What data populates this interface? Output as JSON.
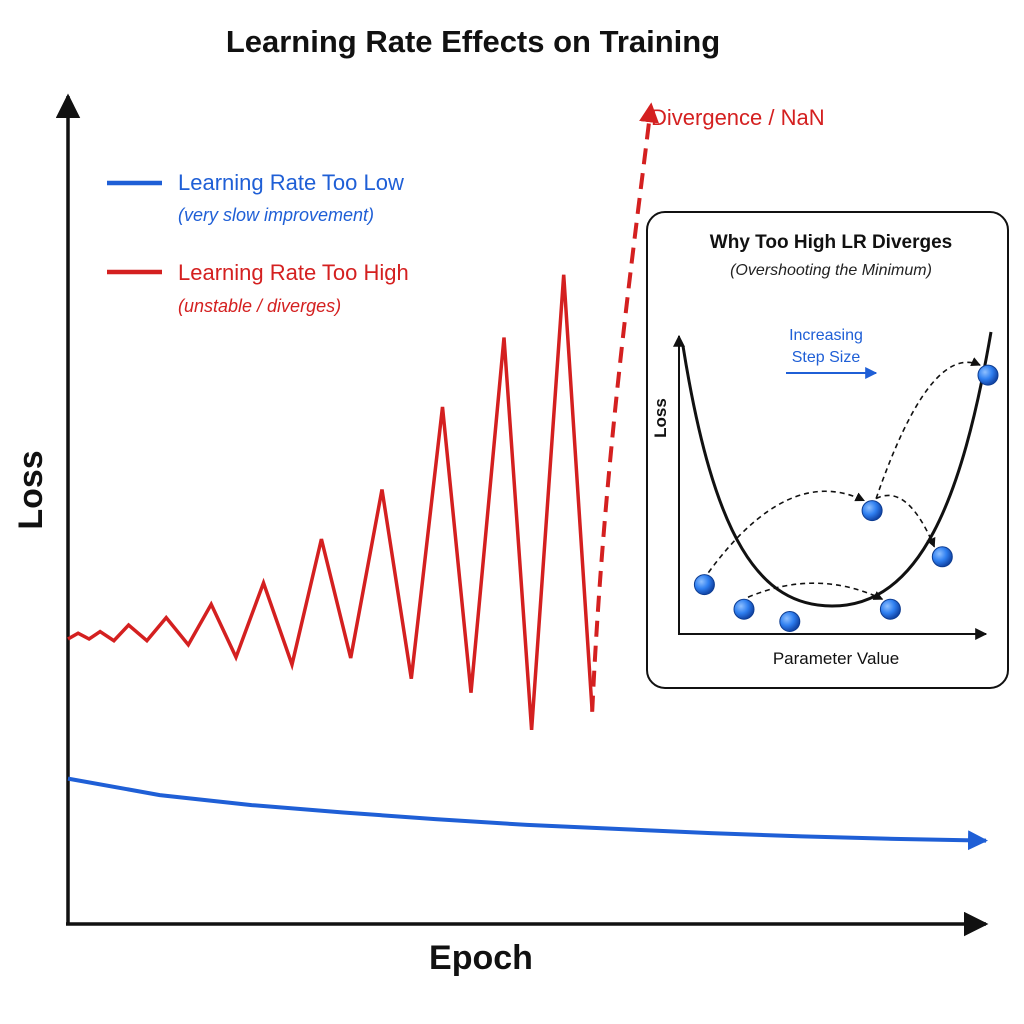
{
  "colors": {
    "low_lr": "#1f5fd6",
    "high_lr": "#d42020",
    "axis": "#111111",
    "point": "#2f7ff0"
  },
  "chart_data": {
    "type": "line",
    "title": "Learning Rate Effects on Training",
    "xlabel": "Epoch",
    "ylabel": "Loss",
    "grid": false,
    "legend_position": "top-left",
    "xlim": [
      0,
      100
    ],
    "ylim": [
      0,
      100
    ],
    "series": [
      {
        "name": "Learning Rate Too Low",
        "note": "(very slow improvement)",
        "color": "#1f5fd6",
        "x": [
          0,
          10,
          20,
          30,
          40,
          50,
          60,
          70,
          80,
          90,
          100
        ],
        "y": [
          17.6,
          15.6,
          14.4,
          13.5,
          12.7,
          12.0,
          11.5,
          11.0,
          10.6,
          10.3,
          10.1
        ]
      },
      {
        "name": "Learning Rate Too High",
        "note": "(unstable / diverges)",
        "color": "#d42020",
        "x": [
          0,
          1.1,
          2.3,
          3.5,
          5,
          6.6,
          8.6,
          10.7,
          13.1,
          15.6,
          18.3,
          21.3,
          24.4,
          27.6,
          30.8,
          34.2,
          37.4,
          40.8,
          43.9,
          47.5,
          50.5,
          54.0,
          57.1,
          63.5
        ],
        "y": [
          34.5,
          35.2,
          34.5,
          35.4,
          34.3,
          36.2,
          34.3,
          37.1,
          33.8,
          38.7,
          32.3,
          41.3,
          31.4,
          46.6,
          32.2,
          52.6,
          29.7,
          62.6,
          28.0,
          71.0,
          23.5,
          78.6,
          25.7,
          99.0
        ],
        "annotation": "Divergence / NaN"
      }
    ],
    "inset": {
      "title": "Why Too High LR Diverges",
      "subtitle": "(Overshooting the Minimum)",
      "xlabel": "Parameter Value",
      "ylabel": "Loss",
      "note": "Increasing Step Size",
      "points": [
        {
          "x": 0.07,
          "y": 0.82
        },
        {
          "x": 0.2,
          "y": 0.9
        },
        {
          "x": 0.35,
          "y": 0.94
        },
        {
          "x": 0.62,
          "y": 0.58
        },
        {
          "x": 0.68,
          "y": 0.9
        },
        {
          "x": 0.85,
          "y": 0.73
        },
        {
          "x": 1.0,
          "y": 0.14
        }
      ],
      "jumps": [
        [
          1,
          4
        ],
        [
          0,
          3
        ],
        [
          3,
          5
        ],
        [
          3,
          6
        ]
      ]
    }
  }
}
